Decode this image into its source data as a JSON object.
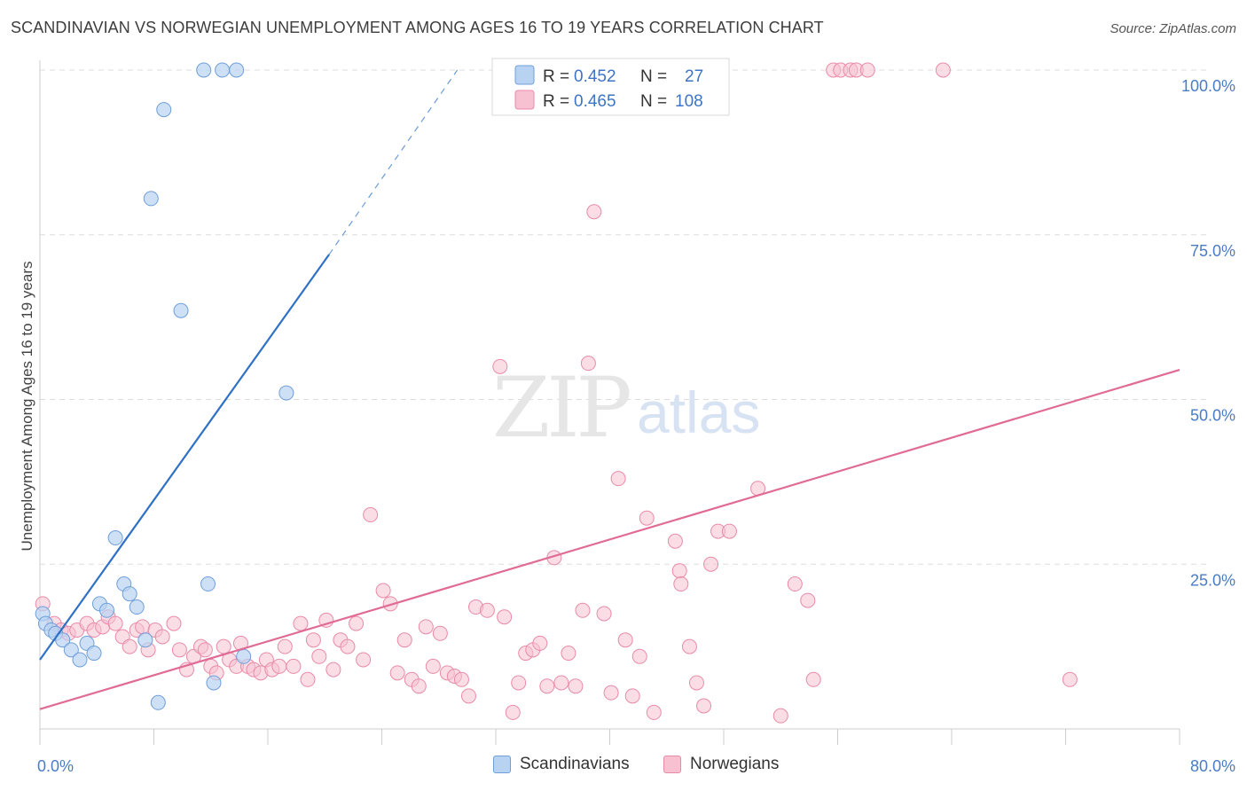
{
  "header": {
    "title": "SCANDINAVIAN VS NORWEGIAN UNEMPLOYMENT AMONG AGES 16 TO 19 YEARS CORRELATION CHART",
    "source": "Source: ZipAtlas.com"
  },
  "watermark": {
    "zip": "ZIP",
    "atlas": "atlas"
  },
  "legend_top": {
    "rows": [
      {
        "r_label": "R = ",
        "r_value": "0.452",
        "n_label": "N = ",
        "n_value": "27"
      },
      {
        "r_label": "R = ",
        "r_value": "0.465",
        "n_label": "N = ",
        "n_value": "108"
      }
    ]
  },
  "legend_bottom": {
    "items": [
      {
        "label": "Scandinavians"
      },
      {
        "label": "Norwegians"
      }
    ]
  },
  "colors": {
    "scandinavian_fill": "#b8d3f2",
    "scandinavian_stroke": "#6f9fd9",
    "scandinavian_line": "#2f71c6",
    "norwegian_fill": "#f7c1d2",
    "norwegian_stroke": "#e98aa9",
    "norwegian_line": "#e06b95",
    "tick_text": "#4a7cc5",
    "grid": "#dddddd"
  },
  "chart_data": {
    "type": "scatter",
    "title": "SCANDINAVIAN VS NORWEGIAN UNEMPLOYMENT AMONG AGES 16 TO 19 YEARS CORRELATION CHART",
    "xlabel": "",
    "ylabel": "Unemployment Among Ages 16 to 19 years",
    "xlim": [
      0,
      80
    ],
    "ylim": [
      0,
      100
    ],
    "x_tick_labels": [
      "0.0%",
      "80.0%"
    ],
    "y_tick_values": [
      25,
      50,
      75,
      100
    ],
    "y_tick_labels": [
      "25.0%",
      "50.0%",
      "75.0%",
      "100.0%"
    ],
    "grid": true,
    "legend_position": "top-center",
    "series": [
      {
        "name": "Scandinavians",
        "r": 0.452,
        "n": 27,
        "points": [
          [
            0.2,
            17.5
          ],
          [
            0.4,
            16.0
          ],
          [
            0.8,
            15.0
          ],
          [
            1.1,
            14.5
          ],
          [
            1.6,
            13.5
          ],
          [
            2.2,
            12.0
          ],
          [
            2.8,
            10.5
          ],
          [
            3.3,
            13.0
          ],
          [
            3.8,
            11.5
          ],
          [
            4.2,
            19.0
          ],
          [
            4.7,
            18.0
          ],
          [
            5.3,
            29.0
          ],
          [
            5.9,
            22.0
          ],
          [
            6.3,
            20.5
          ],
          [
            6.8,
            18.5
          ],
          [
            7.4,
            13.5
          ],
          [
            8.3,
            4.0
          ],
          [
            7.8,
            80.5
          ],
          [
            8.7,
            94.0
          ],
          [
            9.9,
            63.5
          ],
          [
            11.5,
            100.0
          ],
          [
            12.8,
            100.0
          ],
          [
            13.8,
            100.0
          ],
          [
            11.8,
            22.0
          ],
          [
            12.2,
            7.0
          ],
          [
            14.3,
            11.0
          ],
          [
            17.3,
            51.0
          ]
        ],
        "trendline": {
          "x": [
            0,
            20.3
          ],
          "y": [
            10.5,
            72.0
          ],
          "dashed_to": [
            29.3,
            100.0
          ]
        }
      },
      {
        "name": "Norwegians",
        "r": 0.465,
        "n": 108,
        "points": [
          [
            0.2,
            19.0
          ],
          [
            1.0,
            16.0
          ],
          [
            1.5,
            15.0
          ],
          [
            2.0,
            14.5
          ],
          [
            2.6,
            15.0
          ],
          [
            3.3,
            16.0
          ],
          [
            3.8,
            15.0
          ],
          [
            4.4,
            15.5
          ],
          [
            4.8,
            17.0
          ],
          [
            5.3,
            16.0
          ],
          [
            5.8,
            14.0
          ],
          [
            6.3,
            12.5
          ],
          [
            6.8,
            15.0
          ],
          [
            7.2,
            15.5
          ],
          [
            7.6,
            12.0
          ],
          [
            8.1,
            15.0
          ],
          [
            8.6,
            14.0
          ],
          [
            9.4,
            16.0
          ],
          [
            9.8,
            12.0
          ],
          [
            10.3,
            9.0
          ],
          [
            10.8,
            11.0
          ],
          [
            11.3,
            12.5
          ],
          [
            11.6,
            12.0
          ],
          [
            12.0,
            9.5
          ],
          [
            12.4,
            8.5
          ],
          [
            12.9,
            12.5
          ],
          [
            13.3,
            10.5
          ],
          [
            13.8,
            9.5
          ],
          [
            14.1,
            13.0
          ],
          [
            14.6,
            9.5
          ],
          [
            15.0,
            9.0
          ],
          [
            15.5,
            8.5
          ],
          [
            15.9,
            10.5
          ],
          [
            16.3,
            9.0
          ],
          [
            16.8,
            9.5
          ],
          [
            17.2,
            12.5
          ],
          [
            17.8,
            9.5
          ],
          [
            18.3,
            16.0
          ],
          [
            18.8,
            7.5
          ],
          [
            19.2,
            13.5
          ],
          [
            19.6,
            11.0
          ],
          [
            20.1,
            16.5
          ],
          [
            20.6,
            9.0
          ],
          [
            21.1,
            13.5
          ],
          [
            21.6,
            12.5
          ],
          [
            22.2,
            16.0
          ],
          [
            22.7,
            10.5
          ],
          [
            23.2,
            32.5
          ],
          [
            24.1,
            21.0
          ],
          [
            24.6,
            19.0
          ],
          [
            25.1,
            8.5
          ],
          [
            25.6,
            13.5
          ],
          [
            26.1,
            7.5
          ],
          [
            26.6,
            6.5
          ],
          [
            27.1,
            15.5
          ],
          [
            27.6,
            9.5
          ],
          [
            28.1,
            14.5
          ],
          [
            28.6,
            8.5
          ],
          [
            29.1,
            8.0
          ],
          [
            29.6,
            7.5
          ],
          [
            30.1,
            5.0
          ],
          [
            30.6,
            18.5
          ],
          [
            31.4,
            18.0
          ],
          [
            32.3,
            55.0
          ],
          [
            32.6,
            17.0
          ],
          [
            33.2,
            2.5
          ],
          [
            33.6,
            7.0
          ],
          [
            34.1,
            11.5
          ],
          [
            34.6,
            12.0
          ],
          [
            35.1,
            13.0
          ],
          [
            35.6,
            6.5
          ],
          [
            36.1,
            26.0
          ],
          [
            36.6,
            7.0
          ],
          [
            37.1,
            11.5
          ],
          [
            37.6,
            6.5
          ],
          [
            38.1,
            18.0
          ],
          [
            38.5,
            55.5
          ],
          [
            38.9,
            78.5
          ],
          [
            39.6,
            17.5
          ],
          [
            40.1,
            5.5
          ],
          [
            40.6,
            38.0
          ],
          [
            41.1,
            13.5
          ],
          [
            41.6,
            5.0
          ],
          [
            42.1,
            11.0
          ],
          [
            42.6,
            32.0
          ],
          [
            43.1,
            2.5
          ],
          [
            44.0,
            100.0
          ],
          [
            44.6,
            28.5
          ],
          [
            44.9,
            24.0
          ],
          [
            45.6,
            12.5
          ],
          [
            46.1,
            7.0
          ],
          [
            46.6,
            3.5
          ],
          [
            47.1,
            25.0
          ],
          [
            47.6,
            30.0
          ],
          [
            48.4,
            30.0
          ],
          [
            50.4,
            36.5
          ],
          [
            52.0,
            2.0
          ],
          [
            53.0,
            22.0
          ],
          [
            53.9,
            19.5
          ],
          [
            54.3,
            7.5
          ],
          [
            55.7,
            100.0
          ],
          [
            56.2,
            100.0
          ],
          [
            56.9,
            100.0
          ],
          [
            57.3,
            100.0
          ],
          [
            58.1,
            100.0
          ],
          [
            63.4,
            100.0
          ],
          [
            72.3,
            7.5
          ],
          [
            45.0,
            22.0
          ]
        ],
        "trendline": {
          "x": [
            0,
            80
          ],
          "y": [
            3.0,
            54.5
          ]
        }
      }
    ]
  }
}
